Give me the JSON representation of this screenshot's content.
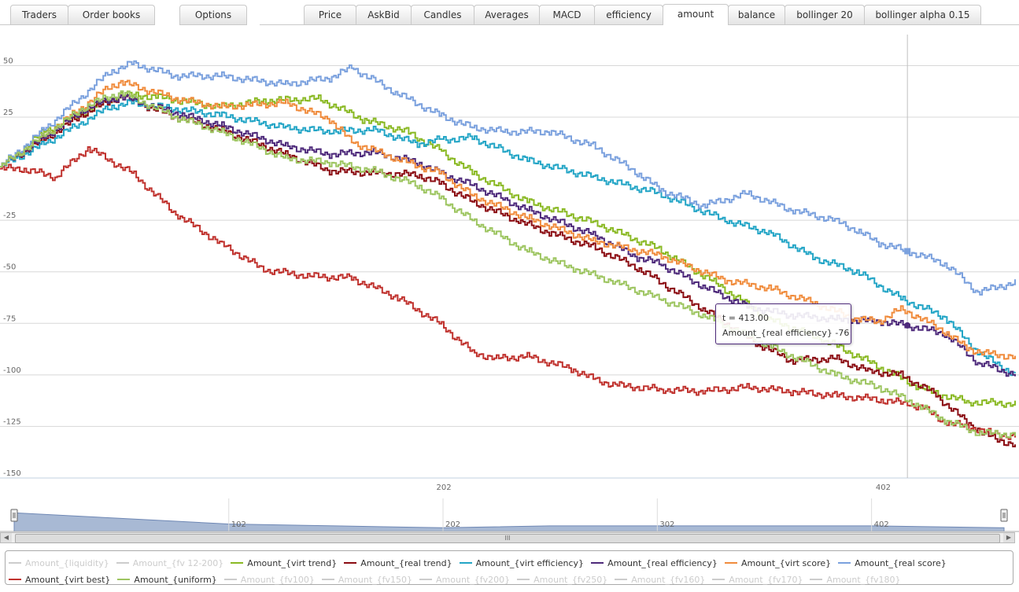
{
  "tabs": [
    {
      "label": "Traders",
      "active": false
    },
    {
      "label": "Order books",
      "active": false
    },
    {
      "label": "Options",
      "active": false
    },
    {
      "label": "Price",
      "active": false
    },
    {
      "label": "AskBid",
      "active": false
    },
    {
      "label": "Candles",
      "active": false
    },
    {
      "label": "Averages",
      "active": false
    },
    {
      "label": "MACD",
      "active": false
    },
    {
      "label": "efficiency",
      "active": false
    },
    {
      "label": "amount",
      "active": true
    },
    {
      "label": "balance",
      "active": false
    },
    {
      "label": "bollinger 20",
      "active": false
    },
    {
      "label": "bollinger alpha 0.15",
      "active": false
    }
  ],
  "tooltip": {
    "t_line": "t = 413.00",
    "value_line": "Amount_{real efficiency} -76"
  },
  "chart_data": {
    "type": "line",
    "xlim": [
      0,
      462
    ],
    "ylim": [
      -150,
      62
    ],
    "y_ticks": [
      50,
      25,
      -25,
      -50,
      -75,
      -100,
      -125,
      -150
    ],
    "x_ticks": [
      202,
      402
    ],
    "crosshair_x": 413,
    "grid": true,
    "series": [
      {
        "name": "Amount_{liquidity}",
        "visible": false,
        "color": "#cccccc",
        "x": [],
        "y": []
      },
      {
        "name": "Amount_{fv 12-200}",
        "visible": false,
        "color": "#cccccc",
        "x": [],
        "y": []
      },
      {
        "name": "Amount_{virt trend}",
        "visible": true,
        "color": "#8ab924",
        "x": [
          0,
          20,
          55,
          70,
          100,
          120,
          145,
          165,
          185,
          200,
          215,
          240,
          270,
          300,
          325,
          350,
          375,
          400,
          420,
          440,
          462
        ],
        "y": [
          1,
          18,
          36,
          35,
          30,
          33,
          34,
          24,
          18,
          9,
          -2,
          -16,
          -26,
          -39,
          -55,
          -73,
          -83,
          -96,
          -107,
          -113,
          -114
        ]
      },
      {
        "name": "Amount_{real trend}",
        "visible": true,
        "color": "#8b0c12",
        "x": [
          0,
          20,
          40,
          55,
          80,
          100,
          130,
          150,
          170,
          190,
          200,
          215,
          235,
          250,
          270,
          290,
          320,
          345,
          360,
          380,
          395,
          410,
          425,
          440,
          450,
          462
        ],
        "y": [
          1,
          14,
          28,
          35,
          25,
          19,
          7,
          -1,
          -2,
          -3,
          -7,
          -16,
          -25,
          -31,
          -38,
          -48,
          -68,
          -85,
          -93,
          -92,
          -98,
          -100,
          -109,
          -123,
          -130,
          -134
        ]
      },
      {
        "name": "Amount_{virt efficiency}",
        "visible": true,
        "color": "#23a5c6",
        "x": [
          0,
          20,
          50,
          60,
          100,
          130,
          150,
          170,
          190,
          200,
          215,
          240,
          270,
          300,
          330,
          350,
          370,
          390,
          410,
          430,
          445,
          462
        ],
        "y": [
          1,
          12,
          30,
          32,
          26,
          20,
          18,
          19,
          12,
          14,
          15,
          4,
          -4,
          -12,
          -25,
          -31,
          -43,
          -50,
          -63,
          -72,
          -89,
          -100
        ]
      },
      {
        "name": "Amount_{real efficiency}",
        "visible": true,
        "color": "#4e2a7b",
        "x": [
          0,
          20,
          40,
          55,
          80,
          100,
          130,
          150,
          170,
          190,
          200,
          215,
          240,
          270,
          290,
          300,
          320,
          340,
          360,
          380,
          400,
          413,
          430,
          445,
          462
        ],
        "y": [
          1,
          15,
          30,
          35,
          27,
          21,
          11,
          7,
          8,
          3,
          -2,
          -8,
          -20,
          -32,
          -43,
          -46,
          -57,
          -67,
          -71,
          -73,
          -74,
          -76,
          -80,
          -94,
          -100
        ]
      },
      {
        "name": "Amount_{virt score}",
        "visible": true,
        "color": "#f08c3d",
        "x": [
          0,
          20,
          50,
          55,
          80,
          100,
          130,
          150,
          160,
          180,
          200,
          215,
          240,
          270,
          300,
          330,
          350,
          370,
          390,
          400,
          410,
          420,
          430,
          440,
          450,
          462
        ],
        "y": [
          1,
          16,
          40,
          42,
          34,
          30,
          32,
          24,
          13,
          5,
          -2,
          -13,
          -24,
          -35,
          -42,
          -54,
          -58,
          -65,
          -73,
          -74,
          -68,
          -73,
          -79,
          -87,
          -90,
          -91
        ]
      },
      {
        "name": "Amount_{real score}",
        "visible": true,
        "color": "#7ba1de",
        "x": [
          0,
          20,
          50,
          60,
          80,
          100,
          130,
          150,
          160,
          180,
          200,
          215,
          230,
          250,
          270,
          290,
          300,
          320,
          340,
          360,
          380,
          390,
          400,
          413,
          430,
          445,
          462
        ],
        "y": [
          1,
          19,
          47,
          51,
          45,
          45,
          41,
          44,
          49,
          37,
          26,
          20,
          18,
          18,
          11,
          -2,
          -10,
          -18,
          -12,
          -20,
          -25,
          -30,
          -36,
          -40,
          -46,
          -60,
          -55
        ]
      },
      {
        "name": "Amount_{virt best}",
        "visible": true,
        "color": "#c0322e",
        "x": [
          0,
          10,
          25,
          40,
          60,
          80,
          100,
          120,
          140,
          160,
          180,
          200,
          215,
          225,
          240,
          260,
          270,
          280,
          300,
          320,
          340,
          360,
          380,
          400,
          413,
          420,
          430,
          440,
          450,
          462
        ],
        "y": [
          0,
          0,
          -4,
          10,
          -2,
          -22,
          -36,
          -49,
          -52,
          -53,
          -62,
          -75,
          -89,
          -92,
          -91,
          -97,
          -102,
          -105,
          -107,
          -108,
          -106,
          -108,
          -110,
          -112,
          -114,
          -116,
          -123,
          -125,
          -128,
          -130
        ]
      },
      {
        "name": "Amount_{uniform}",
        "visible": true,
        "color": "#9dc560",
        "x": [
          0,
          20,
          40,
          55,
          80,
          100,
          130,
          150,
          170,
          190,
          200,
          215,
          240,
          260,
          280,
          300,
          320,
          350,
          380,
          400,
          413,
          430,
          445,
          462
        ],
        "y": [
          1,
          16,
          31,
          37,
          25,
          18,
          5,
          3,
          -1,
          -8,
          -14,
          -25,
          -40,
          -48,
          -55,
          -63,
          -71,
          -86,
          -100,
          -106,
          -112,
          -122,
          -128,
          -129
        ]
      },
      {
        "name": "Amount_{fv100}",
        "visible": false,
        "color": "#cccccc",
        "x": [],
        "y": []
      },
      {
        "name": "Amount_{fv150}",
        "visible": false,
        "color": "#cccccc",
        "x": [],
        "y": []
      },
      {
        "name": "Amount_{fv200}",
        "visible": false,
        "color": "#cccccc",
        "x": [],
        "y": []
      },
      {
        "name": "Amount_{fv250}",
        "visible": false,
        "color": "#cccccc",
        "x": [],
        "y": []
      },
      {
        "name": "Amount_{fv160}",
        "visible": false,
        "color": "#cccccc",
        "x": [],
        "y": []
      },
      {
        "name": "Amount_{fv170}",
        "visible": false,
        "color": "#cccccc",
        "x": [],
        "y": []
      },
      {
        "name": "Amount_{fv180}",
        "visible": false,
        "color": "#cccccc",
        "x": [],
        "y": []
      }
    ]
  },
  "navigator": {
    "x_ticks": [
      102,
      202,
      302,
      402
    ],
    "x": [
      0,
      50,
      100,
      150,
      200,
      250,
      300,
      350,
      400,
      462
    ],
    "y": [
      -6,
      -9,
      -12,
      -13,
      -14,
      -13,
      -13,
      -13,
      -13,
      -14
    ]
  },
  "scrollbar": {
    "grip": "III",
    "left_arrow": "◀",
    "right_arrow": "▶"
  }
}
